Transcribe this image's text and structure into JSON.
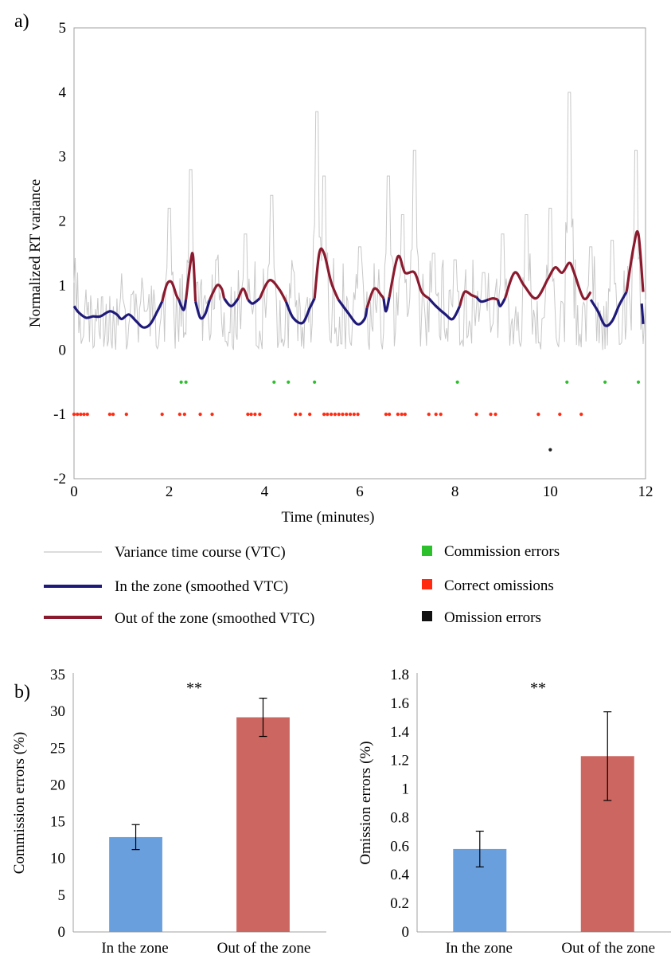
{
  "panel_labels": {
    "a": "a)",
    "b": "b)"
  },
  "colors": {
    "vtc": "#c8c8c8",
    "in_zone": "#1f1a7a",
    "out_zone": "#8b1a2e",
    "commission": "#2dc02d",
    "correct_omission": "#ff2a10",
    "omission": "#222222",
    "bar_in": "#6a9fde",
    "bar_out": "#cc6660",
    "axis": "#a0a0a0"
  },
  "chart_data": [
    {
      "type": "line",
      "id": "vtc",
      "xlabel": "Time (minutes)",
      "ylabel": "Normalized RT variance",
      "xlim": [
        0,
        12
      ],
      "ylim": [
        -2,
        5
      ],
      "xticks": [
        "0",
        "2",
        "4",
        "6",
        "8",
        "10",
        "12"
      ],
      "yticks": [
        "-2",
        "-1",
        "0",
        "1",
        "2",
        "3",
        "4",
        "5"
      ],
      "grid": false,
      "raw_vtc_peaks": [
        [
          1.0,
          0.8
        ],
        [
          1.5,
          0.6
        ],
        [
          2.0,
          2.2
        ],
        [
          2.45,
          2.8
        ],
        [
          3.0,
          1.4
        ],
        [
          3.6,
          1.8
        ],
        [
          4.15,
          2.4
        ],
        [
          4.6,
          1.2
        ],
        [
          5.1,
          3.7
        ],
        [
          5.25,
          2.7
        ],
        [
          6.0,
          1.6
        ],
        [
          6.6,
          2.7
        ],
        [
          6.9,
          2.1
        ],
        [
          7.15,
          3.1
        ],
        [
          7.55,
          1.5
        ],
        [
          8.0,
          1.4
        ],
        [
          8.6,
          1.2
        ],
        [
          9.0,
          1.8
        ],
        [
          9.5,
          2.1
        ],
        [
          10.0,
          2.2
        ],
        [
          10.4,
          4.0
        ],
        [
          10.85,
          1.6
        ],
        [
          11.3,
          1.7
        ],
        [
          11.8,
          3.1
        ]
      ],
      "smoothed_in_zone": [
        [
          [
            0.0,
            0.68
          ],
          [
            0.1,
            0.58
          ],
          [
            0.25,
            0.5
          ],
          [
            0.4,
            0.52
          ],
          [
            0.55,
            0.52
          ],
          [
            0.75,
            0.6
          ],
          [
            0.9,
            0.55
          ],
          [
            1.0,
            0.48
          ],
          [
            1.15,
            0.55
          ],
          [
            1.3,
            0.45
          ],
          [
            1.45,
            0.35
          ],
          [
            1.6,
            0.4
          ],
          [
            1.75,
            0.6
          ],
          [
            1.85,
            0.75
          ]
        ],
        [
          [
            2.2,
            0.78
          ],
          [
            2.3,
            0.62
          ],
          [
            2.35,
            0.78
          ]
        ],
        [
          [
            2.55,
            0.75
          ],
          [
            2.65,
            0.5
          ],
          [
            2.75,
            0.55
          ],
          [
            2.85,
            0.78
          ]
        ],
        [
          [
            3.15,
            0.8
          ],
          [
            3.3,
            0.68
          ],
          [
            3.45,
            0.8
          ]
        ],
        [
          [
            3.65,
            0.78
          ],
          [
            3.75,
            0.72
          ],
          [
            3.9,
            0.8
          ]
        ],
        [
          [
            4.45,
            0.75
          ],
          [
            4.6,
            0.5
          ],
          [
            4.8,
            0.42
          ],
          [
            4.95,
            0.65
          ],
          [
            5.05,
            0.8
          ]
        ],
        [
          [
            5.55,
            0.78
          ],
          [
            5.75,
            0.58
          ],
          [
            5.95,
            0.4
          ],
          [
            6.1,
            0.48
          ],
          [
            6.15,
            0.65
          ]
        ],
        [
          [
            6.5,
            0.8
          ],
          [
            6.55,
            0.6
          ],
          [
            6.62,
            0.82
          ]
        ],
        [
          [
            7.45,
            0.8
          ],
          [
            7.6,
            0.68
          ],
          [
            7.8,
            0.55
          ],
          [
            7.95,
            0.48
          ],
          [
            8.1,
            0.68
          ]
        ],
        [
          [
            8.45,
            0.82
          ],
          [
            8.55,
            0.75
          ],
          [
            8.7,
            0.78
          ]
        ],
        [
          [
            8.9,
            0.78
          ],
          [
            8.95,
            0.68
          ],
          [
            9.05,
            0.8
          ]
        ],
        [
          [
            10.85,
            0.78
          ],
          [
            11.0,
            0.6
          ],
          [
            11.15,
            0.38
          ],
          [
            11.3,
            0.45
          ],
          [
            11.45,
            0.7
          ],
          [
            11.6,
            0.9
          ]
        ],
        [
          [
            11.92,
            0.72
          ],
          [
            11.95,
            0.4
          ]
        ]
      ],
      "smoothed_out_of_zone": [
        [
          [
            1.85,
            0.75
          ],
          [
            1.95,
            1.02
          ],
          [
            2.05,
            1.05
          ],
          [
            2.15,
            0.85
          ],
          [
            2.2,
            0.78
          ]
        ],
        [
          [
            2.35,
            0.78
          ],
          [
            2.45,
            1.38
          ],
          [
            2.5,
            1.45
          ],
          [
            2.55,
            0.75
          ]
        ],
        [
          [
            2.85,
            0.78
          ],
          [
            3.0,
            1.0
          ],
          [
            3.1,
            0.95
          ],
          [
            3.15,
            0.8
          ]
        ],
        [
          [
            3.45,
            0.8
          ],
          [
            3.55,
            0.95
          ],
          [
            3.65,
            0.78
          ]
        ],
        [
          [
            3.9,
            0.8
          ],
          [
            4.1,
            1.08
          ],
          [
            4.3,
            0.95
          ],
          [
            4.45,
            0.75
          ]
        ],
        [
          [
            5.05,
            0.8
          ],
          [
            5.15,
            1.5
          ],
          [
            5.25,
            1.5
          ],
          [
            5.4,
            1.05
          ],
          [
            5.55,
            0.78
          ]
        ],
        [
          [
            6.15,
            0.65
          ],
          [
            6.3,
            0.95
          ],
          [
            6.45,
            0.85
          ],
          [
            6.5,
            0.8
          ]
        ],
        [
          [
            6.62,
            0.82
          ],
          [
            6.8,
            1.45
          ],
          [
            6.95,
            1.2
          ],
          [
            7.15,
            1.2
          ],
          [
            7.3,
            0.9
          ],
          [
            7.45,
            0.8
          ]
        ],
        [
          [
            8.1,
            0.68
          ],
          [
            8.2,
            0.9
          ],
          [
            8.35,
            0.85
          ],
          [
            8.45,
            0.82
          ]
        ],
        [
          [
            8.7,
            0.78
          ],
          [
            8.8,
            0.8
          ],
          [
            8.9,
            0.78
          ]
        ],
        [
          [
            9.05,
            0.8
          ],
          [
            9.25,
            1.2
          ],
          [
            9.45,
            1.0
          ],
          [
            9.7,
            0.8
          ],
          [
            9.95,
            1.1
          ],
          [
            10.1,
            1.28
          ],
          [
            10.25,
            1.2
          ],
          [
            10.4,
            1.35
          ],
          [
            10.5,
            1.2
          ],
          [
            10.7,
            0.8
          ],
          [
            10.85,
            0.9
          ]
        ],
        [
          [
            11.6,
            0.9
          ],
          [
            11.75,
            1.6
          ],
          [
            11.85,
            1.8
          ],
          [
            11.95,
            0.9
          ]
        ]
      ],
      "series": [
        {
          "name": "Commission errors",
          "y": -0.5,
          "x": [
            2.25,
            2.35,
            4.2,
            4.5,
            5.05,
            8.05,
            10.35,
            11.15,
            11.85
          ]
        },
        {
          "name": "Correct omissions",
          "y": -1,
          "x": [
            0.0,
            0.07,
            0.14,
            0.21,
            0.28,
            0.75,
            0.82,
            1.1,
            1.85,
            2.22,
            2.32,
            2.65,
            2.9,
            3.65,
            3.72,
            3.8,
            3.9,
            4.65,
            4.75,
            4.95,
            5.25,
            5.32,
            5.4,
            5.48,
            5.56,
            5.64,
            5.72,
            5.8,
            5.88,
            5.96,
            6.55,
            6.62,
            6.8,
            6.88,
            6.95,
            7.45,
            7.6,
            7.7,
            8.45,
            8.75,
            8.85,
            9.75,
            10.2,
            10.65
          ]
        },
        {
          "name": "Omission errors",
          "y": -1.55,
          "x": [
            10.0
          ]
        }
      ],
      "legend": {
        "placement": "bottom",
        "entries": [
          {
            "label": "Variance time course (VTC)",
            "style": "thin-line",
            "color_key": "vtc"
          },
          {
            "label": "Commission errors",
            "style": "square",
            "color_key": "commission"
          },
          {
            "label": "In the zone (smoothed VTC)",
            "style": "thick-line",
            "color_key": "in_zone"
          },
          {
            "label": "Correct omissions",
            "style": "square",
            "color_key": "correct_omission"
          },
          {
            "label": "Out of the zone (smoothed VTC)",
            "style": "thick-line",
            "color_key": "out_zone"
          },
          {
            "label": "Omission errors",
            "style": "square",
            "color_key": "omission"
          }
        ]
      }
    },
    {
      "type": "bar",
      "id": "commission",
      "ylabel": "Commission errors (%)",
      "categories": [
        "In the zone",
        "Out of the zone"
      ],
      "values": [
        12.9,
        29.2
      ],
      "errors": [
        1.7,
        2.6
      ],
      "ylim": [
        0,
        35
      ],
      "yticks": [
        "0",
        "5",
        "10",
        "15",
        "20",
        "25",
        "30",
        "35"
      ],
      "annotation": "**"
    },
    {
      "type": "bar",
      "id": "omission",
      "ylabel": "Omission errors (%)",
      "categories": [
        "In the zone",
        "Out of the zone"
      ],
      "values": [
        0.58,
        1.23
      ],
      "errors": [
        0.125,
        0.31
      ],
      "ylim": [
        0,
        1.8
      ],
      "yticks": [
        "0",
        "0.2",
        "0.4",
        "0.6",
        "0.8",
        "1",
        "1.2",
        "1.4",
        "1.6",
        "1.8"
      ],
      "annotation": "**"
    }
  ]
}
